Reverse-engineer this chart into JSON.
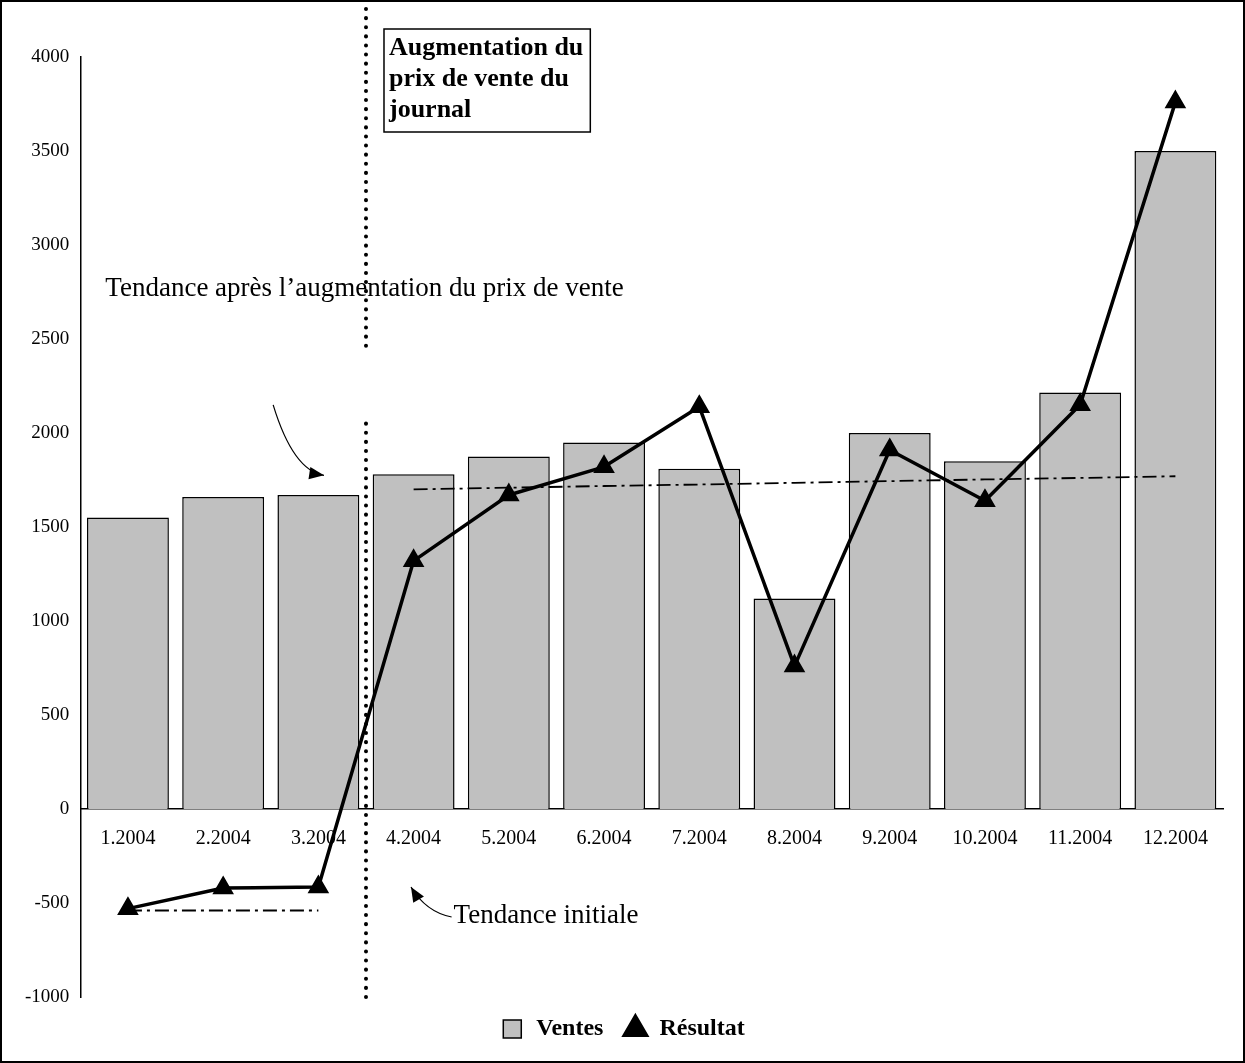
{
  "chart_data": {
    "type": "bar",
    "categories": [
      "1.2004",
      "2.2004",
      "3.2004",
      "4.2004",
      "5.2004",
      "6.2004",
      "7.2004",
      "8.2004",
      "9.2004",
      "10.2004",
      "11.2004",
      "12.2004"
    ],
    "series": [
      {
        "name": "Ventes",
        "color": "#c0c0c0",
        "values": [
          1550,
          1660,
          1670,
          1780,
          1875,
          1950,
          1810,
          1120,
          2000,
          1850,
          2215,
          3500
        ]
      },
      {
        "name": "Résultat",
        "type": "line",
        "color": "#000000",
        "marker": "triangle",
        "values": [
          -530,
          -420,
          -415,
          1320,
          1670,
          1820,
          2140,
          760,
          1910,
          1640,
          2150,
          3760
        ]
      },
      {
        "type": "line",
        "color": "#000000",
        "marker": "none",
        "line_style": "dashed",
        "values": [
          -540,
          -540,
          -540,
          null,
          null,
          null,
          null,
          null,
          null,
          null,
          null,
          null
        ]
      },
      {
        "type": "line",
        "color": "#000000",
        "marker": "none",
        "line_style": "dashed",
        "values": [
          null,
          null,
          null,
          1700,
          1709,
          1718,
          1726,
          1735,
          1744,
          1753,
          1761,
          1770
        ]
      }
    ],
    "ylim": [
      -1000,
      4000
    ],
    "yticks": [
      -1000,
      -500,
      0,
      500,
      1000,
      1500,
      2000,
      2500,
      3000,
      3500,
      4000
    ],
    "grid": false,
    "legend": "bottom",
    "ref_lines": [
      {
        "axis": "x",
        "value": "4.2004",
        "label": "Augmentation du prix de vente du journal",
        "line_style": "dotted",
        "color": "#000000"
      }
    ],
    "annotations": [
      "Tendance après l’augmentation du prix de vente",
      "Tendance initiale"
    ]
  }
}
